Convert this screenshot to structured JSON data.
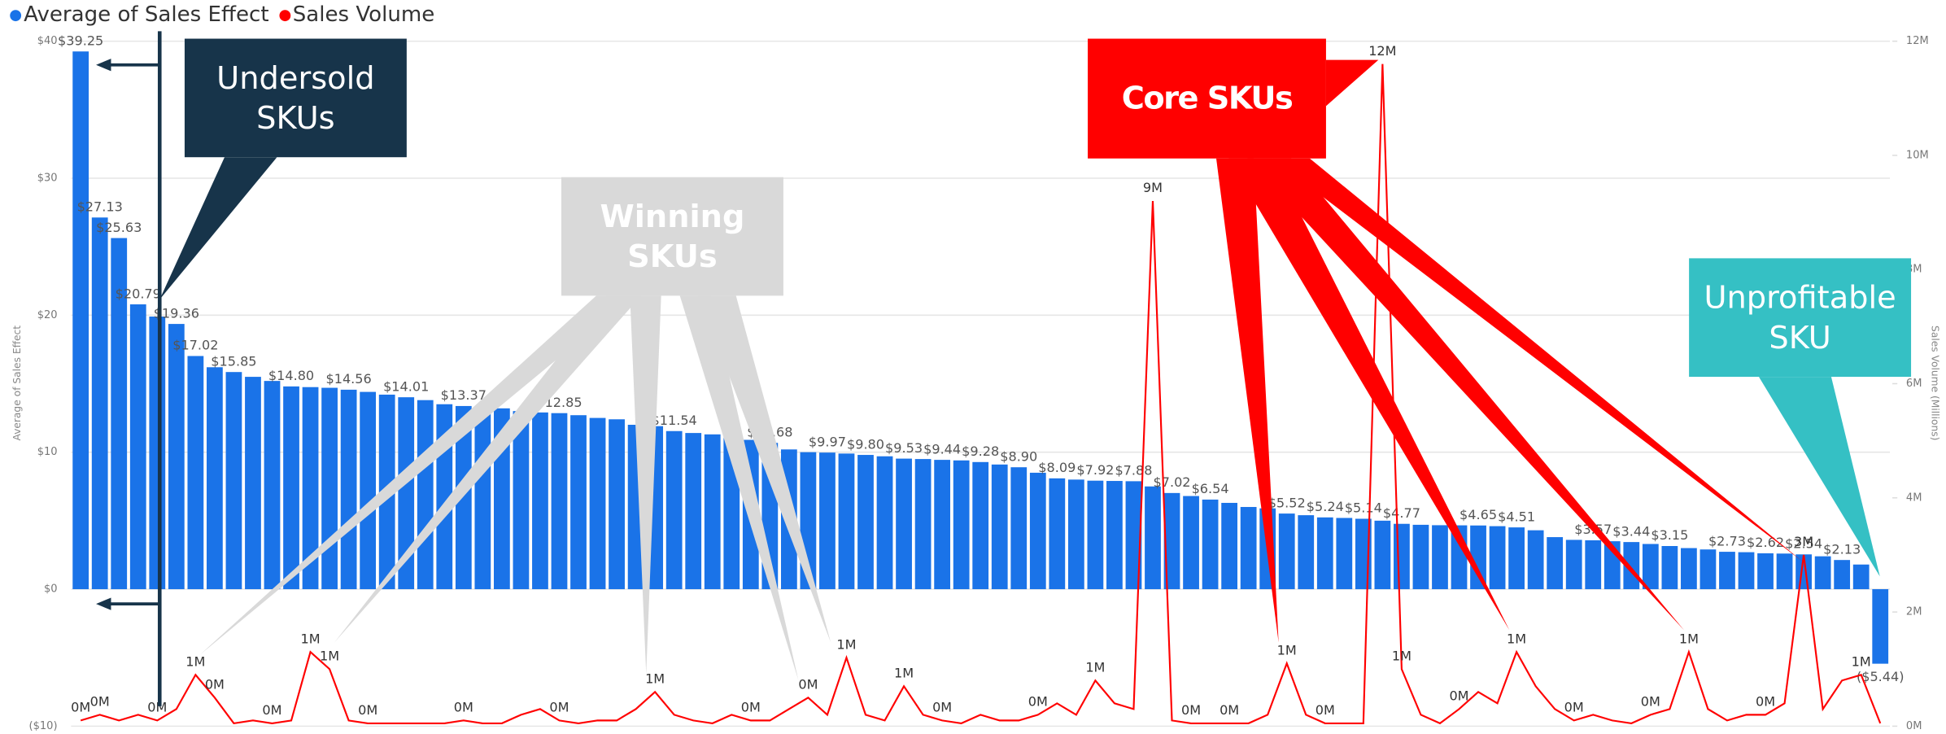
{
  "chart_data": {
    "type": "combo",
    "y_label": "Average of Sales Effect",
    "y2_label": "Sales Volume (Millions)",
    "ylim": [
      -10,
      40
    ],
    "yticks": [
      {
        "value": -10,
        "label": "($10)"
      },
      {
        "value": 0,
        "label": "$0"
      },
      {
        "value": 10,
        "label": "$10"
      },
      {
        "value": 20,
        "label": "$20"
      },
      {
        "value": 30,
        "label": "$30"
      },
      {
        "value": 40,
        "label": "$40"
      }
    ],
    "y2lim": [
      0,
      12
    ],
    "y2ticks": [
      {
        "value": 0,
        "label": "0M"
      },
      {
        "value": 2,
        "label": "2M"
      },
      {
        "value": 4,
        "label": "4M"
      },
      {
        "value": 6,
        "label": "6M"
      },
      {
        "value": 8,
        "label": "8M"
      },
      {
        "value": 10,
        "label": "10M"
      },
      {
        "value": 12,
        "label": "12M"
      }
    ],
    "grid": true,
    "legend": "top-left",
    "series": [
      {
        "name": "Average of Sales Effect",
        "type": "bar",
        "color": "#1a73e8",
        "values": [
          39.25,
          27.13,
          25.63,
          20.79,
          19.9,
          19.36,
          17.02,
          16.2,
          15.85,
          15.5,
          15.2,
          14.8,
          14.75,
          14.7,
          14.56,
          14.4,
          14.2,
          14.01,
          13.8,
          13.5,
          13.37,
          13.37,
          13.2,
          13.0,
          12.9,
          12.85,
          12.7,
          12.5,
          12.4,
          12.0,
          11.9,
          11.54,
          11.4,
          11.3,
          11.1,
          10.9,
          10.68,
          10.2,
          10.0,
          9.97,
          9.9,
          9.8,
          9.7,
          9.53,
          9.5,
          9.44,
          9.4,
          9.28,
          9.1,
          8.9,
          8.5,
          8.09,
          8.0,
          7.92,
          7.9,
          7.88,
          7.5,
          7.02,
          6.8,
          6.54,
          6.3,
          6.0,
          5.9,
          5.52,
          5.4,
          5.24,
          5.2,
          5.14,
          5.0,
          4.77,
          4.7,
          4.67,
          4.66,
          4.65,
          4.6,
          4.51,
          4.3,
          3.8,
          3.6,
          3.57,
          3.5,
          3.44,
          3.3,
          3.15,
          3.0,
          2.9,
          2.73,
          2.7,
          2.62,
          2.6,
          2.54,
          2.4,
          2.13,
          1.8,
          -5.44
        ],
        "value_labels": [
          "$39.25",
          "$27.13",
          "$25.63",
          "$20.79",
          null,
          "$19.36",
          "$17.02",
          null,
          "$15.85",
          null,
          null,
          "$14.80",
          null,
          null,
          "$14.56",
          null,
          null,
          "$14.01",
          null,
          null,
          "$13.37",
          null,
          null,
          null,
          null,
          "$12.85",
          null,
          null,
          null,
          null,
          null,
          "$11.54",
          null,
          null,
          null,
          null,
          "$10.68",
          null,
          null,
          "$9.97",
          null,
          "$9.80",
          null,
          "$9.53",
          null,
          "$9.44",
          null,
          "$9.28",
          null,
          "$8.90",
          null,
          "$8.09",
          null,
          "$7.92",
          null,
          "$7.88",
          null,
          "$7.02",
          null,
          "$6.54",
          null,
          null,
          null,
          "$5.52",
          null,
          "$5.24",
          null,
          "$5.14",
          null,
          "$4.77",
          null,
          null,
          null,
          "$4.65",
          null,
          "$4.51",
          null,
          null,
          null,
          "$3.57",
          null,
          "$3.44",
          null,
          "$3.15",
          null,
          null,
          "$2.73",
          null,
          "$2.62",
          null,
          "$2.54",
          null,
          "$2.13",
          null,
          "($5.44)"
        ]
      },
      {
        "name": "Sales Volume",
        "type": "line",
        "axis": "y2",
        "color": "#ff0000",
        "values": [
          0.1,
          0.2,
          0.1,
          0.2,
          0.1,
          0.3,
          0.9,
          0.5,
          0.05,
          0.1,
          0.05,
          0.1,
          1.3,
          1.0,
          0.1,
          0.05,
          0.05,
          0.05,
          0.05,
          0.05,
          0.1,
          0.05,
          0.05,
          0.2,
          0.3,
          0.1,
          0.05,
          0.1,
          0.1,
          0.3,
          0.6,
          0.2,
          0.1,
          0.05,
          0.2,
          0.1,
          0.1,
          0.3,
          0.5,
          0.2,
          1.2,
          0.2,
          0.1,
          0.7,
          0.2,
          0.1,
          0.05,
          0.2,
          0.1,
          0.1,
          0.2,
          0.4,
          0.2,
          0.8,
          0.4,
          0.3,
          9.2,
          0.1,
          0.05,
          0.05,
          0.05,
          0.05,
          0.2,
          1.1,
          0.2,
          0.05,
          0.05,
          0.05,
          11.6,
          1.0,
          0.2,
          0.05,
          0.3,
          0.6,
          0.4,
          1.3,
          0.7,
          0.3,
          0.1,
          0.2,
          0.1,
          0.05,
          0.2,
          0.3,
          1.3,
          0.3,
          0.1,
          0.2,
          0.2,
          0.4,
          3.0,
          0.3,
          0.8,
          0.9,
          0.05
        ],
        "value_labels": [
          "0M",
          "0M",
          null,
          null,
          "0M",
          null,
          "1M",
          "0M",
          null,
          null,
          "0M",
          null,
          "1M",
          "1M",
          null,
          "0M",
          null,
          null,
          null,
          null,
          "0M",
          null,
          null,
          null,
          null,
          "0M",
          null,
          null,
          null,
          null,
          "1M",
          null,
          null,
          null,
          null,
          "0M",
          null,
          null,
          "0M",
          null,
          "1M",
          null,
          null,
          "1M",
          null,
          "0M",
          null,
          null,
          null,
          null,
          "0M",
          null,
          null,
          "1M",
          null,
          null,
          "9M",
          null,
          "0M",
          null,
          "0M",
          null,
          null,
          "1M",
          null,
          "0M",
          null,
          null,
          "12M",
          "1M",
          null,
          null,
          "0M",
          null,
          null,
          "1M",
          null,
          null,
          "0M",
          null,
          null,
          null,
          "0M",
          null,
          "1M",
          null,
          null,
          null,
          "0M",
          null,
          "3M",
          null,
          null,
          "1M",
          null
        ]
      }
    ],
    "annotations": [
      "Undersold SKUs",
      "Winning SKUs",
      "Core SKUs",
      "Unprofitable SKU"
    ]
  }
}
